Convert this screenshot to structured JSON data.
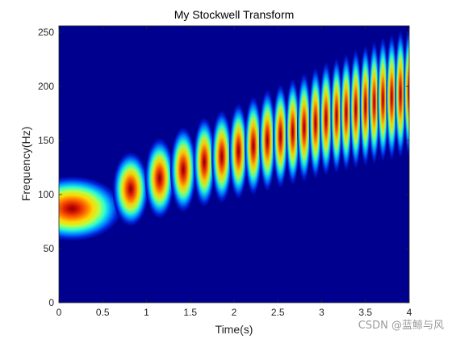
{
  "chart_data": {
    "type": "heatmap",
    "title": "My Stockwell Transform",
    "xlabel": "Time(s)",
    "ylabel": "Frequency(Hz)",
    "xlim": [
      0,
      4
    ],
    "ylim": [
      0,
      256
    ],
    "xticks": [
      "0",
      "0.5",
      "1",
      "1.5",
      "2",
      "2.5",
      "3",
      "3.5",
      "4"
    ],
    "yticks": [
      "0",
      "50",
      "100",
      "150",
      "200",
      "250"
    ],
    "colormap": "jet",
    "background_color": "#00008f",
    "grid": false,
    "signal": {
      "description_label": "chirp ridge",
      "freq_start_hz": 85,
      "freq_end_hz": 195,
      "time_end_s": 4
    },
    "blobs": [
      {
        "t": 0.15,
        "f": 87,
        "amp": 1.0
      },
      {
        "t": 0.82,
        "f": 105,
        "amp": 0.97
      },
      {
        "t": 1.15,
        "f": 115,
        "amp": 0.96
      },
      {
        "t": 1.42,
        "f": 123,
        "amp": 0.96
      },
      {
        "t": 1.66,
        "f": 130,
        "amp": 0.95
      },
      {
        "t": 1.86,
        "f": 135,
        "amp": 0.95
      },
      {
        "t": 2.05,
        "f": 140,
        "amp": 0.95
      },
      {
        "t": 2.22,
        "f": 145,
        "amp": 0.95
      },
      {
        "t": 2.38,
        "f": 150,
        "amp": 0.95
      },
      {
        "t": 2.53,
        "f": 154,
        "amp": 0.95
      },
      {
        "t": 2.67,
        "f": 158,
        "amp": 0.95
      },
      {
        "t": 2.8,
        "f": 162,
        "amp": 0.95
      },
      {
        "t": 2.93,
        "f": 166,
        "amp": 0.95
      },
      {
        "t": 3.05,
        "f": 170,
        "amp": 0.95
      },
      {
        "t": 3.17,
        "f": 173,
        "amp": 0.95
      },
      {
        "t": 3.28,
        "f": 176,
        "amp": 0.95
      },
      {
        "t": 3.39,
        "f": 179,
        "amp": 0.95
      },
      {
        "t": 3.5,
        "f": 182,
        "amp": 0.95
      },
      {
        "t": 3.6,
        "f": 185,
        "amp": 0.95
      },
      {
        "t": 3.7,
        "f": 188,
        "amp": 0.95
      },
      {
        "t": 3.8,
        "f": 190,
        "amp": 0.95
      },
      {
        "t": 3.9,
        "f": 193,
        "amp": 0.95
      },
      {
        "t": 4.0,
        "f": 195,
        "amp": 0.95
      }
    ]
  },
  "watermark": "CSDN @蓝鲸与风"
}
